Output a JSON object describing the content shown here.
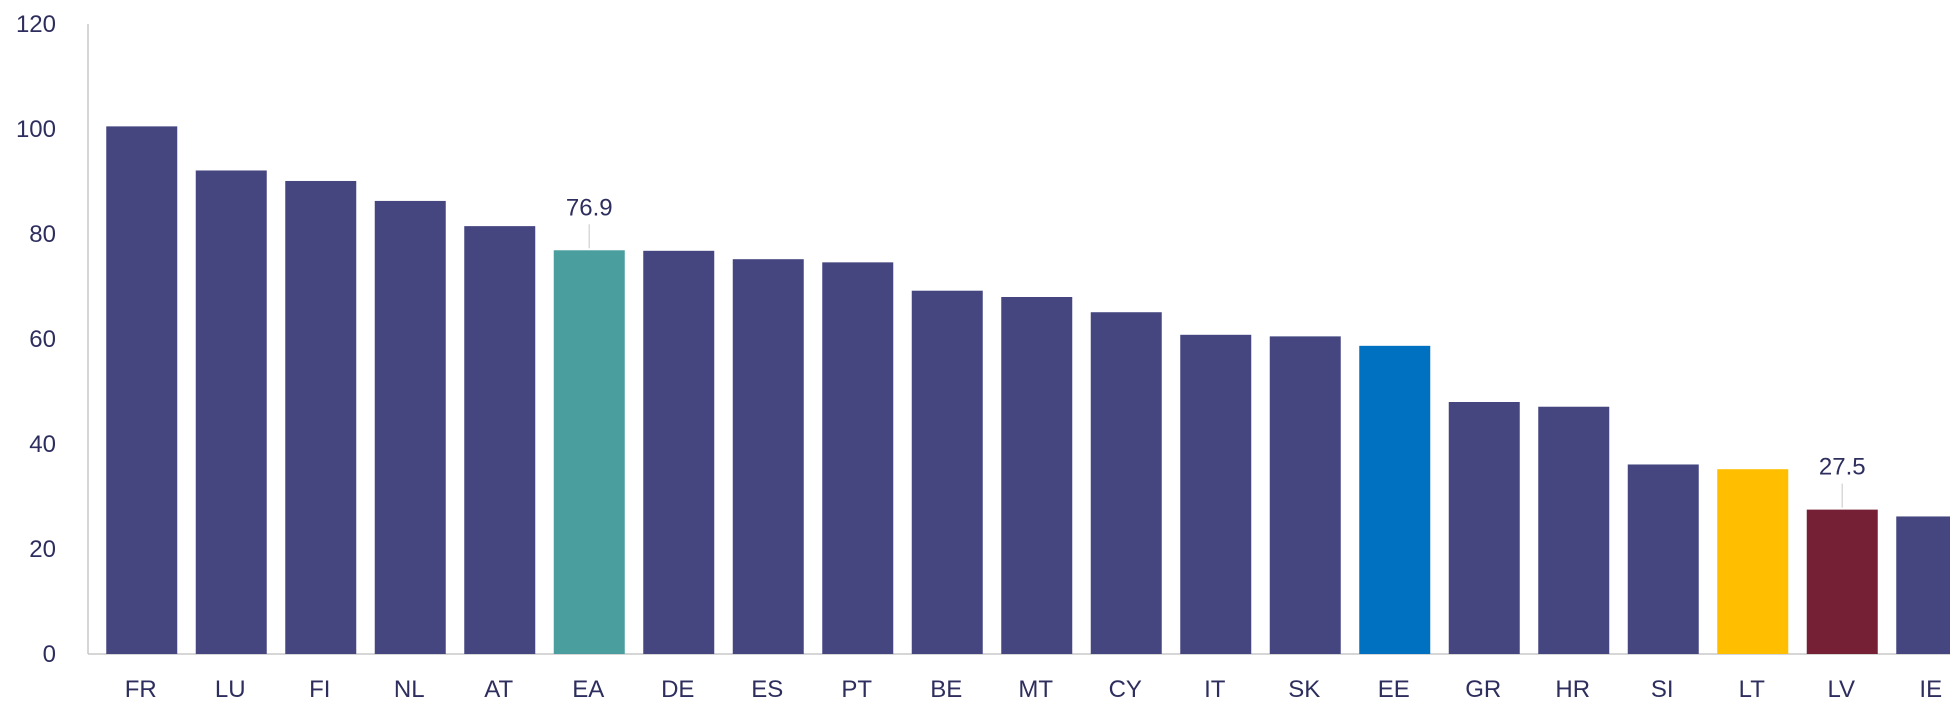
{
  "chart_data": {
    "type": "bar",
    "title": "",
    "xlabel": "",
    "ylabel": "",
    "ylim": [
      0,
      120
    ],
    "yticks": [
      0,
      20,
      40,
      60,
      80,
      100,
      120
    ],
    "grid": false,
    "legend": "none",
    "categories": [
      "FR",
      "LU",
      "FI",
      "NL",
      "AT",
      "EA",
      "DE",
      "ES",
      "PT",
      "BE",
      "MT",
      "CY",
      "IT",
      "SK",
      "EE",
      "GR",
      "HR",
      "SI",
      "LT",
      "LV",
      "IE"
    ],
    "values": [
      100.5,
      92.1,
      90.1,
      86.3,
      81.5,
      76.9,
      76.8,
      75.2,
      74.6,
      69.2,
      68.0,
      65.1,
      60.8,
      60.5,
      58.7,
      48.0,
      47.1,
      36.1,
      35.2,
      27.5,
      26.2
    ],
    "colors": [
      "#454680",
      "#454680",
      "#454680",
      "#454680",
      "#454680",
      "#4a9e9e",
      "#454680",
      "#454680",
      "#454680",
      "#454680",
      "#454680",
      "#454680",
      "#454680",
      "#454680",
      "#0070c0",
      "#454680",
      "#454680",
      "#454680",
      "#ffbf00",
      "#752035",
      "#454680"
    ],
    "data_labels": [
      {
        "category": "EA",
        "text": "76.9"
      },
      {
        "category": "LV",
        "text": "27.5"
      }
    ]
  }
}
